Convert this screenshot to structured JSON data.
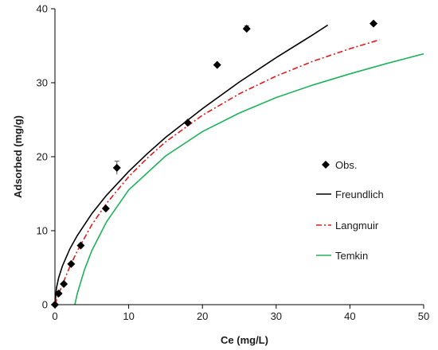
{
  "chart_data": {
    "type": "scatter",
    "xlabel": "Ce (mg/L)",
    "ylabel": "Adsorbed (mg/g)",
    "xlim": [
      0,
      50
    ],
    "ylim": [
      0,
      40
    ],
    "xticks": [
      0,
      10,
      20,
      30,
      40,
      50
    ],
    "yticks": [
      0,
      10,
      20,
      30,
      40
    ],
    "grid": false,
    "legend_position": "right",
    "observed": {
      "name": "Obs.",
      "marker": "diamond",
      "color": "#000000",
      "x": [
        0,
        0.5,
        1.2,
        2.2,
        3.5,
        6.9,
        8.4,
        18.0,
        22.0,
        26.0,
        43.2
      ],
      "y": [
        0,
        1.5,
        2.8,
        5.5,
        8.0,
        13.0,
        18.5,
        24.6,
        32.4,
        37.3,
        38.0
      ],
      "error_bar": [
        null,
        null,
        null,
        null,
        null,
        null,
        0.9,
        null,
        null,
        0.4,
        null
      ]
    },
    "series": [
      {
        "name": "Freundlich",
        "color": "#000000",
        "style": "solid",
        "x": [
          0,
          0.2,
          0.5,
          1,
          2,
          3,
          5,
          7,
          10,
          12.5,
          15,
          20,
          25,
          30,
          35,
          37
        ],
        "y": [
          0,
          2.26,
          3.61,
          5.2,
          7.5,
          9.3,
          12.3,
          14.8,
          18.0,
          20.4,
          22.6,
          26.5,
          30.1,
          33.4,
          36.5,
          37.8
        ]
      },
      {
        "name": "Langmuir",
        "color": "#e31a1c",
        "style": "dash-dot",
        "x": [
          0,
          0.5,
          1,
          2,
          3,
          5,
          7,
          10,
          12.5,
          15,
          20,
          25,
          30,
          35,
          40,
          44
        ],
        "y": [
          0,
          1.4,
          2.7,
          5.1,
          7.2,
          10.8,
          13.7,
          17.3,
          19.8,
          22.0,
          25.6,
          28.5,
          30.9,
          32.9,
          34.6,
          35.8
        ]
      },
      {
        "name": "Temkin",
        "color": "#1fb25a",
        "style": "solid",
        "x": [
          2.7,
          3,
          4,
          5,
          7,
          10,
          15,
          20,
          25,
          30,
          35,
          40,
          45,
          50
        ],
        "y": [
          0,
          1.4,
          4.7,
          7.3,
          11.2,
          15.5,
          20.1,
          23.4,
          25.9,
          28.0,
          29.7,
          31.2,
          32.6,
          33.9
        ]
      }
    ]
  }
}
